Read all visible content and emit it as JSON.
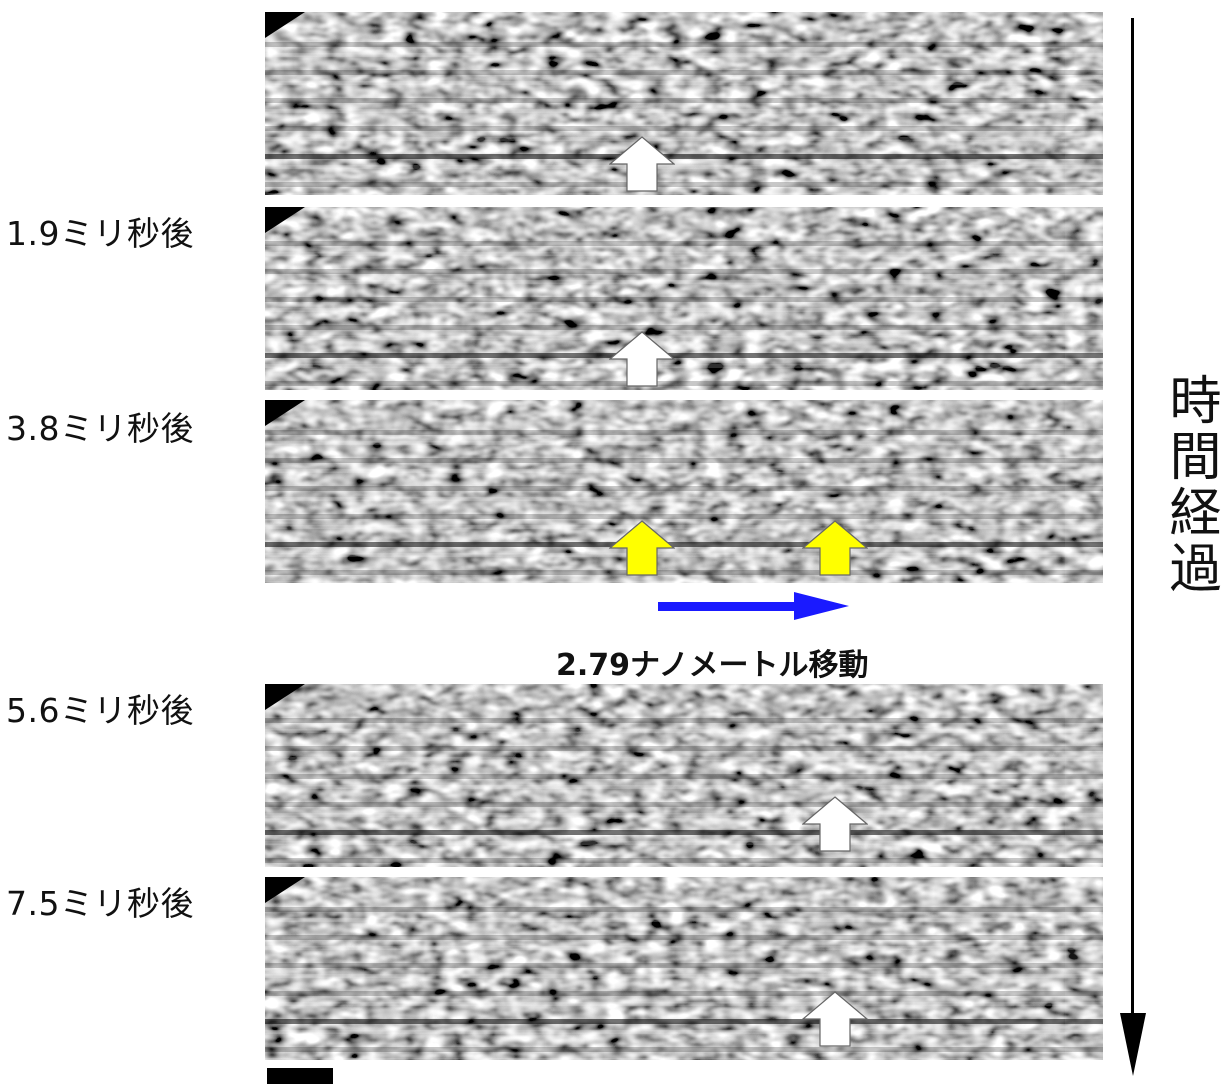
{
  "frames": [
    {
      "time_label": "",
      "arrows": [
        {
          "color": "white",
          "position": 0.45
        }
      ]
    },
    {
      "time_label": "1.9ミリ秒後",
      "arrows": [
        {
          "color": "white",
          "position": 0.45
        }
      ]
    },
    {
      "time_label": "3.8ミリ秒後",
      "arrows": [
        {
          "color": "yellow",
          "position": 0.45
        },
        {
          "color": "yellow",
          "position": 0.68
        }
      ]
    },
    {
      "time_label": "5.6ミリ秒後",
      "arrows": [
        {
          "color": "white",
          "position": 0.68
        }
      ]
    },
    {
      "time_label": "7.5ミリ秒後",
      "arrows": [
        {
          "color": "white",
          "position": 0.68
        }
      ]
    }
  ],
  "time_axis_label": "時間経過",
  "motion": {
    "label": "2.79ナノメートル移動",
    "color": "#1a1aff"
  },
  "colors": {
    "white_arrow": "#ffffff",
    "yellow_arrow": "#ffff00",
    "arrow_outline": "#666666"
  },
  "icons": {
    "corner": "triangle-corner-icon",
    "up_arrow": "up-arrow-icon",
    "time_arrow": "down-arrow-icon"
  }
}
